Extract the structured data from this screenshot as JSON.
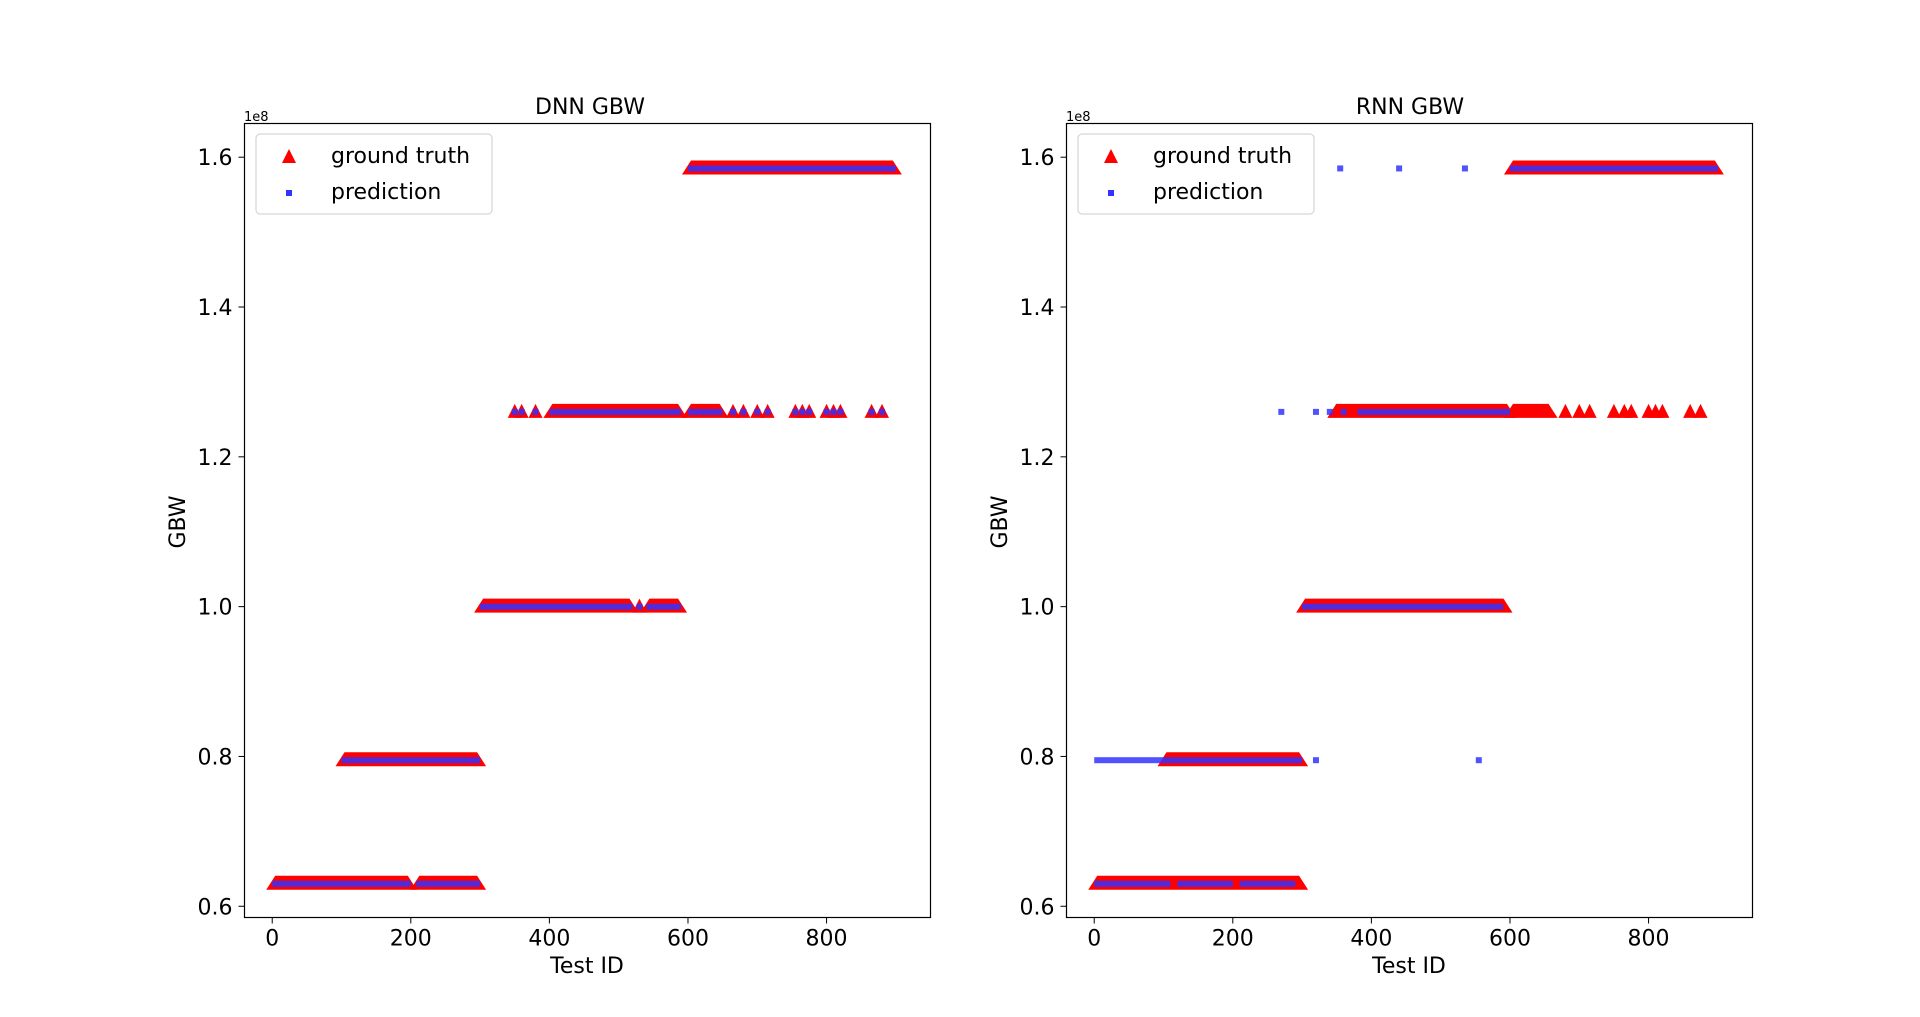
{
  "chart_data": [
    {
      "type": "scatter",
      "title": "DNN GBW",
      "xlabel": "Test ID",
      "ylabel": "GBW",
      "y_scale_label": "1e8",
      "xlim": [
        -40,
        950
      ],
      "ylim": [
        0.585,
        1.645
      ],
      "xticks": [
        0,
        200,
        400,
        600,
        800
      ],
      "yticks": [
        0.6,
        0.8,
        1.0,
        1.2,
        1.4,
        1.6
      ],
      "xtick_labels": [
        "0",
        "200",
        "400",
        "600",
        "800"
      ],
      "ytick_labels": [
        "0.6",
        "0.8",
        "1.0",
        "1.2",
        "1.4",
        "1.6"
      ],
      "legend": {
        "position": "top-left",
        "entries": [
          "ground truth",
          "prediction"
        ]
      },
      "colors": {
        "ground_truth": "#ff0000",
        "prediction": "#3333ff"
      },
      "grid": false,
      "series": [
        {
          "name": "ground truth",
          "marker": "triangle",
          "segments": [
            {
              "y": 0.63,
              "x_ranges": [
                [
                  0,
                  200
                ],
                [
                  208,
                  300
                ]
              ],
              "x_points": []
            },
            {
              "y": 0.795,
              "x_ranges": [
                [
                  100,
                  300
                ]
              ],
              "x_points": []
            },
            {
              "y": 1.0,
              "x_ranges": [
                [
                  300,
                  520
                ],
                [
                  540,
                  590
                ]
              ],
              "x_points": [
                530
              ]
            },
            {
              "y": 1.26,
              "x_ranges": [
                [
                  400,
                  590
                ],
                [
                  600,
                  650
                ]
              ],
              "x_points": [
                350,
                360,
                380,
                665,
                680,
                700,
                715,
                755,
                765,
                775,
                800,
                810,
                820,
                865,
                880
              ]
            },
            {
              "y": 1.585,
              "x_ranges": [
                [
                  600,
                  900
                ]
              ],
              "x_points": []
            }
          ]
        },
        {
          "name": "prediction",
          "marker": "square",
          "segments": [
            {
              "y": 0.63,
              "x_ranges": [
                [
                  0,
                  200
                ],
                [
                  208,
                  300
                ]
              ],
              "x_points": []
            },
            {
              "y": 0.795,
              "x_ranges": [
                [
                  100,
                  300
                ]
              ],
              "x_points": []
            },
            {
              "y": 1.0,
              "x_ranges": [
                [
                  300,
                  520
                ],
                [
                  540,
                  590
                ]
              ],
              "x_points": [
                530
              ]
            },
            {
              "y": 1.26,
              "x_ranges": [
                [
                  400,
                  590
                ],
                [
                  600,
                  650
                ]
              ],
              "x_points": [
                350,
                360,
                380,
                665,
                680,
                700,
                715,
                755,
                765,
                775,
                800,
                810,
                820,
                865,
                880
              ]
            },
            {
              "y": 1.585,
              "x_ranges": [
                [
                  600,
                  900
                ]
              ],
              "x_points": []
            }
          ]
        }
      ]
    },
    {
      "type": "scatter",
      "title": "RNN GBW",
      "xlabel": "Test ID",
      "ylabel": "GBW",
      "y_scale_label": "1e8",
      "xlim": [
        -40,
        950
      ],
      "ylim": [
        0.585,
        1.645
      ],
      "xticks": [
        0,
        200,
        400,
        600,
        800
      ],
      "yticks": [
        0.6,
        0.8,
        1.0,
        1.2,
        1.4,
        1.6
      ],
      "xtick_labels": [
        "0",
        "200",
        "400",
        "600",
        "800"
      ],
      "ytick_labels": [
        "0.6",
        "0.8",
        "1.0",
        "1.2",
        "1.4",
        "1.6"
      ],
      "legend": {
        "position": "top-left",
        "entries": [
          "ground truth",
          "prediction"
        ]
      },
      "colors": {
        "ground_truth": "#ff0000",
        "prediction": "#3333ff"
      },
      "grid": false,
      "series": [
        {
          "name": "ground truth",
          "marker": "triangle",
          "segments": [
            {
              "y": 0.63,
              "x_ranges": [
                [
                  0,
                  300
                ]
              ],
              "x_points": []
            },
            {
              "y": 0.795,
              "x_ranges": [
                [
                  100,
                  300
                ]
              ],
              "x_points": []
            },
            {
              "y": 1.0,
              "x_ranges": [
                [
                  300,
                  595
                ]
              ],
              "x_points": []
            },
            {
              "y": 1.26,
              "x_ranges": [
                [
                  345,
                  600
                ],
                [
                  600,
                  660
                ]
              ],
              "x_points": [
                680,
                700,
                715,
                750,
                765,
                775,
                800,
                810,
                820,
                860,
                875
              ]
            },
            {
              "y": 1.585,
              "x_ranges": [
                [
                  600,
                  900
                ]
              ],
              "x_points": []
            }
          ]
        },
        {
          "name": "prediction",
          "marker": "square",
          "segments": [
            {
              "y": 0.63,
              "x_ranges": [
                [
                  0,
                  110
                ],
                [
                  120,
                  200
                ],
                [
                  210,
                  290
                ]
              ],
              "x_points": []
            },
            {
              "y": 0.795,
              "x_ranges": [
                [
                  0,
                  300
                ]
              ],
              "x_points": [
                320,
                555
              ]
            },
            {
              "y": 1.0,
              "x_ranges": [
                [
                  300,
                  590
                ]
              ],
              "x_points": []
            },
            {
              "y": 1.26,
              "x_ranges": [
                [
                  380,
                  600
                ]
              ],
              "x_points": [
                270,
                320,
                340,
                360
              ]
            },
            {
              "y": 1.585,
              "x_ranges": [
                [
                  600,
                  900
                ]
              ],
              "x_points": [
                355,
                440,
                535
              ]
            }
          ]
        }
      ]
    }
  ]
}
